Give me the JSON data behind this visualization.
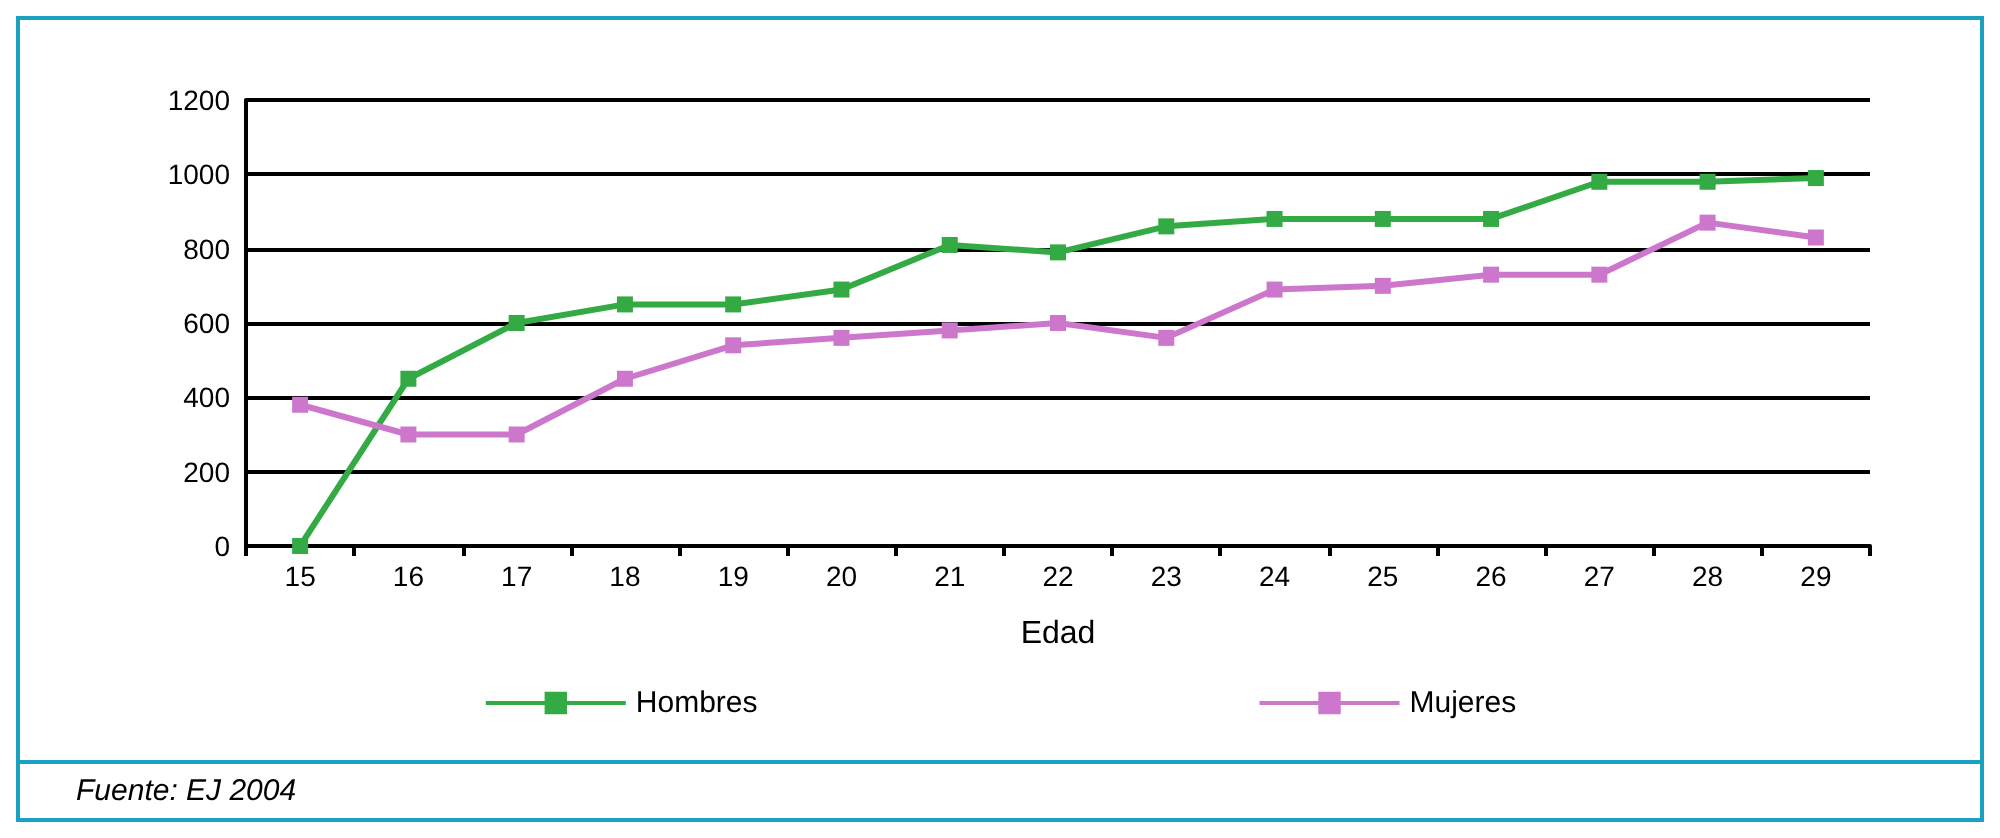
{
  "chart_data": {
    "type": "line",
    "xlabel": "Edad",
    "categories": [
      "15",
      "16",
      "17",
      "18",
      "19",
      "20",
      "21",
      "22",
      "23",
      "24",
      "25",
      "26",
      "27",
      "28",
      "29"
    ],
    "series": [
      {
        "name": "Hombres",
        "color": "#33aa44",
        "values": [
          0,
          450,
          600,
          650,
          650,
          690,
          810,
          790,
          860,
          880,
          880,
          880,
          980,
          980,
          990
        ]
      },
      {
        "name": "Mujeres",
        "color": "#cc77cc",
        "values": [
          380,
          300,
          300,
          450,
          540,
          560,
          580,
          600,
          560,
          690,
          700,
          730,
          730,
          870,
          830
        ]
      }
    ],
    "ylim": [
      0,
      1200
    ],
    "yticks": [
      0,
      200,
      400,
      600,
      800,
      1000,
      1200
    ],
    "grid": "y",
    "legend": "bottom",
    "marker": "square",
    "line_style": "solid",
    "annotations": [
      "Fuente: EJ 2004"
    ]
  }
}
